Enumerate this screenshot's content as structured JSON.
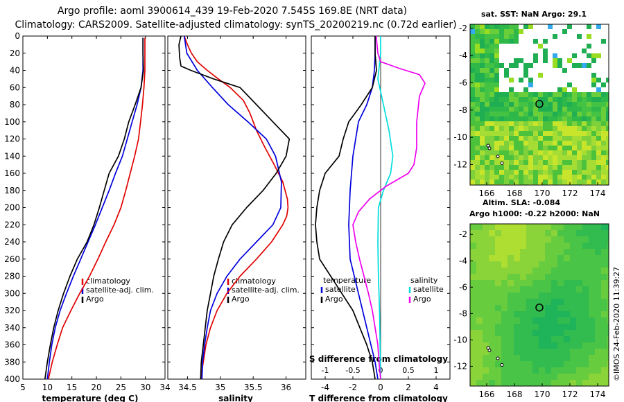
{
  "title": {
    "line1": "Argo profile: aoml 3900614_439 19-Feb-2020 7.545S 169.8E (NRT data)",
    "line2": "Climatology: CARS2009. Satellite-adjusted climatology: synTS_20200219.nc (0.72d earlier)"
  },
  "colors": {
    "climatology": "#e00000",
    "satellite_adj": "#0000dd",
    "argo": "#000000",
    "satellite": "#00dddd",
    "salinity": "#ee00ee"
  },
  "chart_data": [
    {
      "id": "temperature",
      "type": "line",
      "xlabel": "temperature (deg C)",
      "ylabel": "",
      "xlim": [
        5,
        34
      ],
      "ylim": [
        400,
        0
      ],
      "xticks": [
        5,
        10,
        15,
        20,
        25,
        30,
        34
      ],
      "yticks": [
        0,
        20,
        40,
        60,
        80,
        100,
        120,
        140,
        160,
        180,
        200,
        220,
        240,
        260,
        280,
        300,
        320,
        340,
        360,
        380,
        400
      ],
      "legend": [
        "climatology",
        "satellite-adj. clim.",
        "Argo"
      ],
      "series": [
        {
          "name": "climatology",
          "color_key": "climatology",
          "points": [
            [
              29.9,
              2
            ],
            [
              29.9,
              20
            ],
            [
              29.9,
              40
            ],
            [
              29.7,
              60
            ],
            [
              29.4,
              80
            ],
            [
              29.0,
              100
            ],
            [
              28.6,
              120
            ],
            [
              27.8,
              140
            ],
            [
              26.9,
              160
            ],
            [
              26.0,
              180
            ],
            [
              25.0,
              200
            ],
            [
              23.6,
              220
            ],
            [
              21.9,
              240
            ],
            [
              20.3,
              260
            ],
            [
              18.6,
              280
            ],
            [
              16.6,
              300
            ],
            [
              14.8,
              320
            ],
            [
              13.1,
              340
            ],
            [
              12.0,
              360
            ],
            [
              11.0,
              380
            ],
            [
              10.2,
              400
            ]
          ]
        },
        {
          "name": "satellite-adj. clim.",
          "color_key": "satellite_adj",
          "points": [
            [
              29.5,
              2
            ],
            [
              29.5,
              20
            ],
            [
              29.5,
              40
            ],
            [
              29.1,
              60
            ],
            [
              28.3,
              80
            ],
            [
              27.3,
              100
            ],
            [
              26.3,
              120
            ],
            [
              25.3,
              140
            ],
            [
              23.9,
              160
            ],
            [
              22.6,
              180
            ],
            [
              21.2,
              200
            ],
            [
              19.8,
              220
            ],
            [
              18.3,
              240
            ],
            [
              16.8,
              260
            ],
            [
              15.3,
              280
            ],
            [
              13.9,
              300
            ],
            [
              12.6,
              320
            ],
            [
              11.6,
              340
            ],
            [
              10.9,
              360
            ],
            [
              10.4,
              380
            ],
            [
              10.0,
              400
            ]
          ]
        },
        {
          "name": "Argo",
          "color_key": "argo",
          "points": [
            [
              29.5,
              2
            ],
            [
              29.5,
              20
            ],
            [
              29.6,
              40
            ],
            [
              29.1,
              60
            ],
            [
              27.9,
              80
            ],
            [
              26.6,
              100
            ],
            [
              25.7,
              120
            ],
            [
              24.5,
              140
            ],
            [
              22.6,
              160
            ],
            [
              21.6,
              180
            ],
            [
              20.6,
              200
            ],
            [
              19.5,
              220
            ],
            [
              18.1,
              240
            ],
            [
              16.1,
              260
            ],
            [
              14.6,
              280
            ],
            [
              13.3,
              300
            ],
            [
              12.2,
              320
            ],
            [
              11.3,
              340
            ],
            [
              10.6,
              360
            ],
            [
              10.0,
              380
            ],
            [
              9.5,
              400
            ]
          ]
        }
      ]
    },
    {
      "id": "salinity",
      "type": "line",
      "xlabel": "salinity",
      "ylabel": "",
      "xlim": [
        34.2,
        36.3
      ],
      "ylim": [
        400,
        0
      ],
      "xticks": [
        34.5,
        35,
        35.5,
        36
      ],
      "legend": [
        "climatology",
        "satellite-adj. clim.",
        "Argo"
      ],
      "series": [
        {
          "name": "climatology",
          "color_key": "climatology",
          "points": [
            [
              34.45,
              0
            ],
            [
              34.5,
              10
            ],
            [
              34.56,
              20
            ],
            [
              34.65,
              30
            ],
            [
              34.8,
              40
            ],
            [
              34.97,
              50
            ],
            [
              35.15,
              60
            ],
            [
              35.35,
              75
            ],
            [
              35.45,
              90
            ],
            [
              35.55,
              110
            ],
            [
              35.68,
              130
            ],
            [
              35.82,
              150
            ],
            [
              35.95,
              170
            ],
            [
              36.02,
              190
            ],
            [
              36.03,
              200
            ],
            [
              36.01,
              210
            ],
            [
              35.95,
              220
            ],
            [
              35.78,
              240
            ],
            [
              35.55,
              260
            ],
            [
              35.3,
              280
            ],
            [
              35.1,
              300
            ],
            [
              34.95,
              320
            ],
            [
              34.85,
              340
            ],
            [
              34.78,
              360
            ],
            [
              34.74,
              380
            ],
            [
              34.7,
              400
            ]
          ]
        },
        {
          "name": "satellite-adj. clim.",
          "color_key": "satellite_adj",
          "points": [
            [
              34.45,
              0
            ],
            [
              34.49,
              20
            ],
            [
              34.65,
              40
            ],
            [
              34.88,
              60
            ],
            [
              35.12,
              80
            ],
            [
              35.42,
              100
            ],
            [
              35.7,
              120
            ],
            [
              35.84,
              140
            ],
            [
              35.93,
              170
            ],
            [
              35.92,
              200
            ],
            [
              35.8,
              220
            ],
            [
              35.55,
              240
            ],
            [
              35.3,
              260
            ],
            [
              35.1,
              280
            ],
            [
              34.95,
              300
            ],
            [
              34.85,
              320
            ],
            [
              34.8,
              340
            ],
            [
              34.76,
              360
            ],
            [
              34.73,
              380
            ],
            [
              34.72,
              400
            ]
          ]
        },
        {
          "name": "Argo",
          "color_key": "argo",
          "points": [
            [
              34.4,
              0
            ],
            [
              34.37,
              10
            ],
            [
              34.38,
              25
            ],
            [
              34.4,
              35
            ],
            [
              34.55,
              40
            ],
            [
              34.9,
              50
            ],
            [
              35.3,
              60
            ],
            [
              35.55,
              80
            ],
            [
              35.8,
              100
            ],
            [
              36.05,
              120
            ],
            [
              36.0,
              140
            ],
            [
              35.85,
              160
            ],
            [
              35.65,
              180
            ],
            [
              35.4,
              200
            ],
            [
              35.18,
              220
            ],
            [
              35.05,
              240
            ],
            [
              34.97,
              260
            ],
            [
              34.9,
              280
            ],
            [
              34.85,
              300
            ],
            [
              34.8,
              320
            ],
            [
              34.77,
              340
            ],
            [
              34.74,
              360
            ],
            [
              34.71,
              380
            ],
            [
              34.7,
              400
            ]
          ]
        }
      ]
    },
    {
      "id": "difference",
      "type": "line",
      "xlabel": "T difference from climatology",
      "top_xlabel": "S difference from climatology",
      "xlim": [
        -5,
        5
      ],
      "top_xlim": [
        -1.25,
        1.25
      ],
      "ylim": [
        400,
        0
      ],
      "xticks": [
        -4,
        -2,
        0,
        2,
        4
      ],
      "top_xticks": [
        -1,
        -0.5,
        0,
        0.5,
        1
      ],
      "legend_temperature": {
        "heading": "temperature",
        "items": [
          "satellite",
          "Argo"
        ]
      },
      "legend_salinity": {
        "heading": "salinity",
        "items": [
          "satellite",
          "Argo"
        ]
      },
      "series": [
        {
          "name": "temperature satellite",
          "color_key": "satellite_adj",
          "axis": "T",
          "points": [
            [
              -0.4,
              0
            ],
            [
              -0.4,
              20
            ],
            [
              -0.45,
              40
            ],
            [
              -0.6,
              60
            ],
            [
              -1.0,
              80
            ],
            [
              -1.6,
              100
            ],
            [
              -2.0,
              140
            ],
            [
              -2.2,
              180
            ],
            [
              -2.3,
              220
            ],
            [
              -2.2,
              260
            ],
            [
              -1.9,
              280
            ],
            [
              -1.6,
              300
            ],
            [
              -1.3,
              320
            ],
            [
              -1.0,
              340
            ],
            [
              -0.7,
              360
            ],
            [
              -0.4,
              380
            ],
            [
              -0.2,
              400
            ]
          ]
        },
        {
          "name": "temperature Argo",
          "color_key": "argo",
          "axis": "T",
          "points": [
            [
              -0.4,
              0
            ],
            [
              -0.4,
              20
            ],
            [
              -0.3,
              40
            ],
            [
              -0.6,
              60
            ],
            [
              -1.4,
              80
            ],
            [
              -2.3,
              100
            ],
            [
              -2.7,
              120
            ],
            [
              -3.0,
              140
            ],
            [
              -4.0,
              160
            ],
            [
              -4.4,
              180
            ],
            [
              -4.6,
              200
            ],
            [
              -4.7,
              220
            ],
            [
              -4.6,
              240
            ],
            [
              -4.4,
              260
            ],
            [
              -3.6,
              280
            ],
            [
              -2.8,
              300
            ],
            [
              -2.0,
              320
            ],
            [
              -1.5,
              340
            ],
            [
              -1.0,
              360
            ],
            [
              -0.6,
              380
            ],
            [
              -0.4,
              400
            ]
          ]
        },
        {
          "name": "salinity satellite",
          "color_key": "satellite",
          "axis": "S",
          "points": [
            [
              0.0,
              0
            ],
            [
              0.0,
              20
            ],
            [
              -0.05,
              50
            ],
            [
              0.05,
              80
            ],
            [
              0.15,
              110
            ],
            [
              0.22,
              140
            ],
            [
              0.18,
              160
            ],
            [
              0.05,
              180
            ],
            [
              -0.04,
              200
            ],
            [
              -0.05,
              240
            ],
            [
              -0.04,
              280
            ],
            [
              -0.02,
              320
            ],
            [
              -0.01,
              360
            ],
            [
              0.0,
              400
            ]
          ]
        },
        {
          "name": "salinity Argo",
          "color_key": "salinity",
          "axis": "S",
          "points": [
            [
              -0.08,
              0
            ],
            [
              -0.05,
              20
            ],
            [
              0.0,
              30
            ],
            [
              0.35,
              38
            ],
            [
              0.7,
              45
            ],
            [
              0.8,
              55
            ],
            [
              0.7,
              70
            ],
            [
              0.65,
              100
            ],
            [
              0.65,
              130
            ],
            [
              0.6,
              150
            ],
            [
              0.5,
              160
            ],
            [
              0.1,
              175
            ],
            [
              -0.2,
              190
            ],
            [
              -0.4,
              205
            ],
            [
              -0.5,
              220
            ],
            [
              -0.45,
              240
            ],
            [
              -0.38,
              260
            ],
            [
              -0.3,
              280
            ],
            [
              -0.22,
              300
            ],
            [
              -0.15,
              320
            ],
            [
              -0.1,
              340
            ],
            [
              -0.05,
              360
            ],
            [
              -0.03,
              380
            ],
            [
              0.0,
              400
            ]
          ]
        }
      ]
    },
    {
      "id": "sst_map",
      "type": "heatmap",
      "title": "sat. SST: NaN Argo: 29.1",
      "xlim": [
        164.8,
        174.8
      ],
      "ylim": [
        -13.5,
        -1.7
      ],
      "xticks": [
        166,
        168,
        170,
        172,
        174
      ],
      "yticks": [
        -2,
        -4,
        -6,
        -8,
        -10,
        -12
      ],
      "marker": {
        "lon": 169.8,
        "lat": -7.545
      }
    },
    {
      "id": "sla_map",
      "type": "heatmap",
      "title_line1": "Altim. SLA: -0.084",
      "title_line2": "Argo h1000: -0.22 h2000: NaN",
      "xlim": [
        164.8,
        174.8
      ],
      "ylim": [
        -13.5,
        -1.2
      ],
      "xticks": [
        166,
        168,
        170,
        172,
        174
      ],
      "yticks": [
        -2,
        -4,
        -6,
        -8,
        -10,
        -12
      ],
      "marker": {
        "lon": 169.8,
        "lat": -7.545
      }
    }
  ],
  "stamp": "©IMOS 24-Feb-2020 11:39:27"
}
